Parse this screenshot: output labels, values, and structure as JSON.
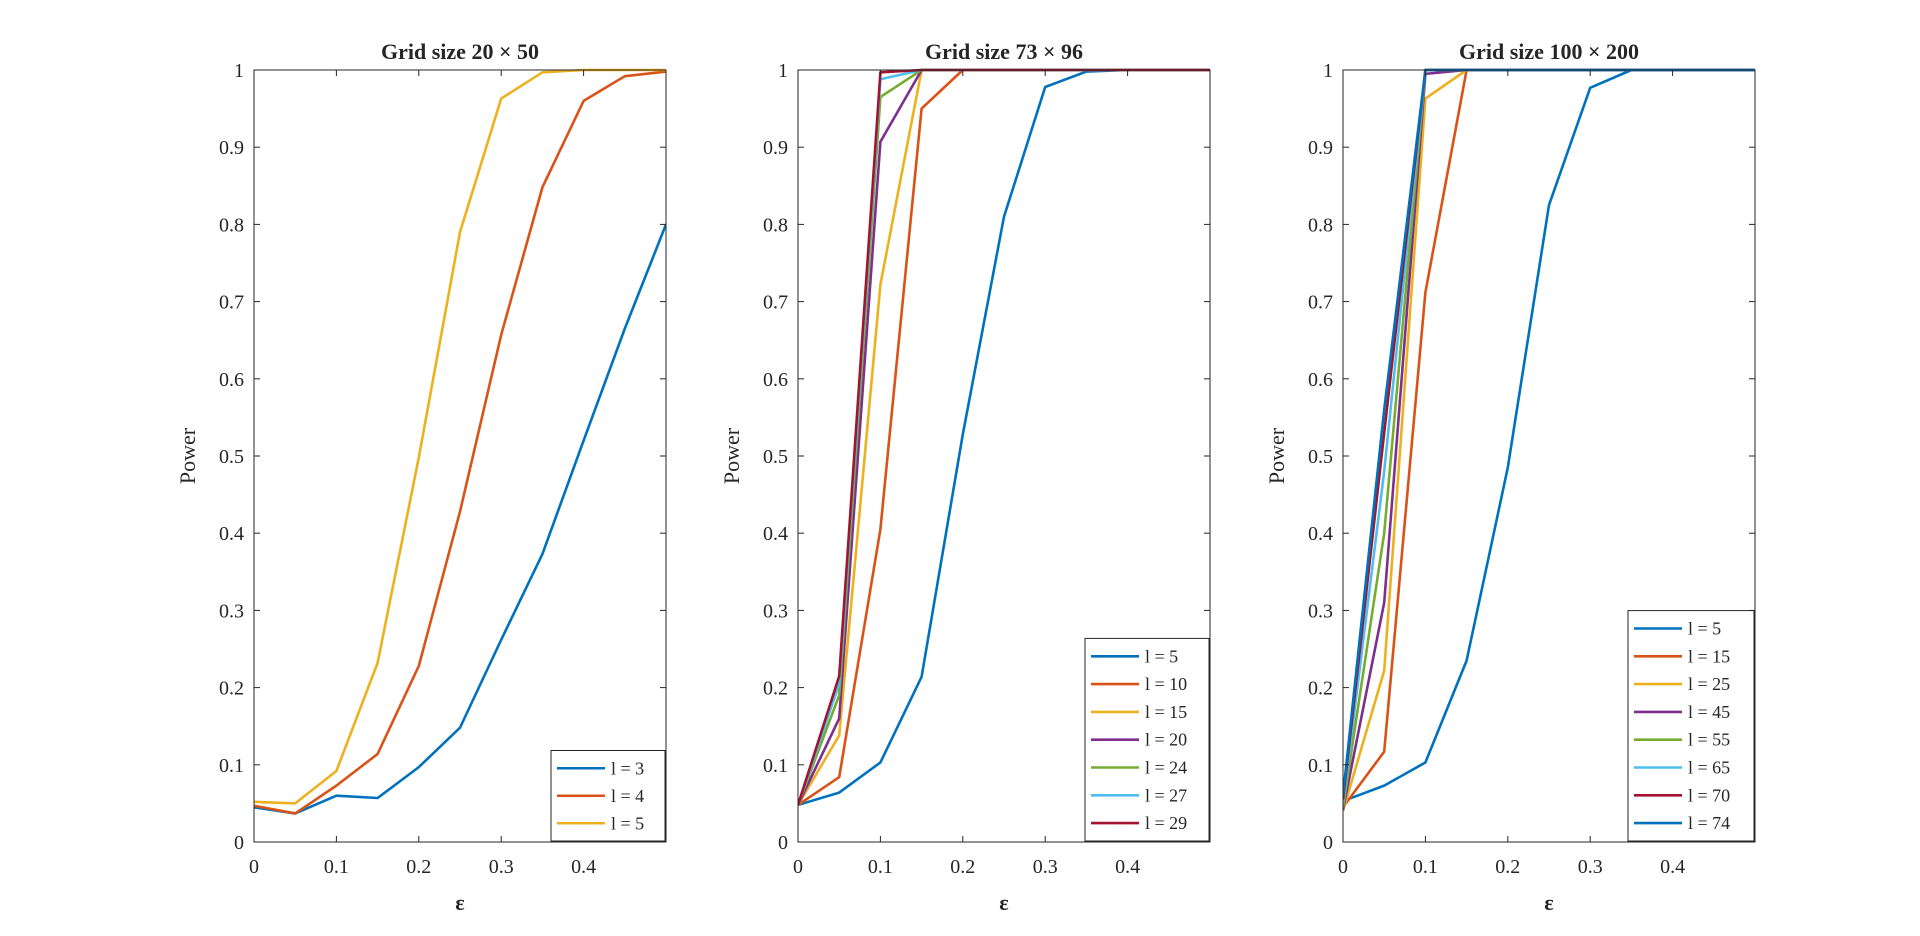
{
  "chart_data": [
    {
      "type": "line",
      "title": "Grid size 20 × 50",
      "xlabel": "ε",
      "ylabel": "Power",
      "xlim": [
        0,
        0.5
      ],
      "ylim": [
        0,
        1
      ],
      "xticks": [
        "0",
        "0.1",
        "0.2",
        "0.3",
        "0.4"
      ],
      "yticks": [
        "0",
        "0.1",
        "0.2",
        "0.3",
        "0.4",
        "0.5",
        "0.6",
        "0.7",
        "0.8",
        "0.9",
        "1"
      ],
      "legend_position": "bottom-right",
      "x": [
        0,
        0.05,
        0.1,
        0.15,
        0.2,
        0.25,
        0.3,
        0.35,
        0.4,
        0.45,
        0.5
      ],
      "series": [
        {
          "name": "l = 3",
          "color": "#0072BD",
          "values": [
            0.045,
            0.037,
            0.06,
            0.057,
            0.097,
            0.148,
            0.262,
            0.373,
            0.52,
            0.665,
            0.8
          ]
        },
        {
          "name": "l = 4",
          "color": "#D95319",
          "values": [
            0.047,
            0.037,
            0.073,
            0.114,
            0.228,
            0.428,
            0.657,
            0.848,
            0.96,
            0.992,
            0.998
          ]
        },
        {
          "name": "l = 5",
          "color": "#EDB120",
          "values": [
            0.052,
            0.05,
            0.092,
            0.232,
            0.498,
            0.79,
            0.963,
            0.997,
            1.0,
            1.0,
            1.0
          ]
        }
      ]
    },
    {
      "type": "line",
      "title": "Grid size 73 × 96",
      "xlabel": "ε",
      "ylabel": "Power",
      "xlim": [
        0,
        0.5
      ],
      "ylim": [
        0,
        1
      ],
      "xticks": [
        "0",
        "0.1",
        "0.2",
        "0.3",
        "0.4"
      ],
      "yticks": [
        "0",
        "0.1",
        "0.2",
        "0.3",
        "0.4",
        "0.5",
        "0.6",
        "0.7",
        "0.8",
        "0.9",
        "1"
      ],
      "legend_position": "bottom-right",
      "x": [
        0,
        0.05,
        0.1,
        0.15,
        0.2,
        0.25,
        0.3,
        0.35,
        0.4,
        0.45,
        0.5
      ],
      "series": [
        {
          "name": "l = 5",
          "color": "#0072BD",
          "values": [
            0.048,
            0.064,
            0.103,
            0.214,
            0.528,
            0.81,
            0.978,
            0.998,
            1.0,
            1.0,
            1.0
          ]
        },
        {
          "name": "l = 10",
          "color": "#D95319",
          "values": [
            0.048,
            0.084,
            0.405,
            0.95,
            1.0,
            1.0,
            1.0,
            1.0,
            1.0,
            1.0,
            1.0
          ]
        },
        {
          "name": "l = 15",
          "color": "#EDB120",
          "values": [
            0.048,
            0.138,
            0.722,
            1.0,
            1.0,
            1.0,
            1.0,
            1.0,
            1.0,
            1.0,
            1.0
          ]
        },
        {
          "name": "l = 20",
          "color": "#7E2F8E",
          "values": [
            0.048,
            0.16,
            0.907,
            1.0,
            1.0,
            1.0,
            1.0,
            1.0,
            1.0,
            1.0,
            1.0
          ]
        },
        {
          "name": "l = 24",
          "color": "#77AC30",
          "values": [
            0.048,
            0.19,
            0.965,
            1.0,
            1.0,
            1.0,
            1.0,
            1.0,
            1.0,
            1.0,
            1.0
          ]
        },
        {
          "name": "l = 27",
          "color": "#4DBEEE",
          "values": [
            0.048,
            0.205,
            0.988,
            1.0,
            1.0,
            1.0,
            1.0,
            1.0,
            1.0,
            1.0,
            1.0
          ]
        },
        {
          "name": "l = 29",
          "color": "#A2142F",
          "values": [
            0.048,
            0.215,
            0.997,
            1.0,
            1.0,
            1.0,
            1.0,
            1.0,
            1.0,
            1.0,
            1.0
          ]
        }
      ]
    },
    {
      "type": "line",
      "title": "Grid size 100 × 200",
      "xlabel": "ε",
      "ylabel": "Power",
      "xlim": [
        0,
        0.5
      ],
      "ylim": [
        0,
        1
      ],
      "xticks": [
        "0",
        "0.1",
        "0.2",
        "0.3",
        "0.4"
      ],
      "yticks": [
        "0",
        "0.1",
        "0.2",
        "0.3",
        "0.4",
        "0.5",
        "0.6",
        "0.7",
        "0.8",
        "0.9",
        "1"
      ],
      "legend_position": "bottom-right",
      "x": [
        0,
        0.05,
        0.1,
        0.15,
        0.2,
        0.25,
        0.3,
        0.35,
        0.4,
        0.45,
        0.5
      ],
      "series": [
        {
          "name": "l = 5",
          "color": "#0072BD",
          "values": [
            0.053,
            0.073,
            0.103,
            0.235,
            0.485,
            0.825,
            0.977,
            1.0,
            1.0,
            1.0,
            1.0
          ]
        },
        {
          "name": "l = 15",
          "color": "#D95319",
          "values": [
            0.045,
            0.117,
            0.712,
            1.0,
            1.0,
            1.0,
            1.0,
            1.0,
            1.0,
            1.0,
            1.0
          ]
        },
        {
          "name": "l = 25",
          "color": "#EDB120",
          "values": [
            0.04,
            0.222,
            0.963,
            1.0,
            1.0,
            1.0,
            1.0,
            1.0,
            1.0,
            1.0,
            1.0
          ]
        },
        {
          "name": "l = 45",
          "color": "#7E2F8E",
          "values": [
            0.042,
            0.31,
            0.995,
            1.0,
            1.0,
            1.0,
            1.0,
            1.0,
            1.0,
            1.0,
            1.0
          ]
        },
        {
          "name": "l = 55",
          "color": "#77AC30",
          "values": [
            0.045,
            0.4,
            1.0,
            1.0,
            1.0,
            1.0,
            1.0,
            1.0,
            1.0,
            1.0,
            1.0
          ]
        },
        {
          "name": "l = 65",
          "color": "#4DBEEE",
          "values": [
            0.05,
            0.48,
            1.0,
            1.0,
            1.0,
            1.0,
            1.0,
            1.0,
            1.0,
            1.0,
            1.0
          ]
        },
        {
          "name": "l = 70",
          "color": "#A2142F",
          "values": [
            0.055,
            0.53,
            1.0,
            1.0,
            1.0,
            1.0,
            1.0,
            1.0,
            1.0,
            1.0,
            1.0
          ]
        },
        {
          "name": "l = 74",
          "color": "#0072BD",
          "values": [
            0.06,
            0.56,
            1.0,
            1.0,
            1.0,
            1.0,
            1.0,
            1.0,
            1.0,
            1.0,
            1.0
          ]
        }
      ]
    }
  ]
}
